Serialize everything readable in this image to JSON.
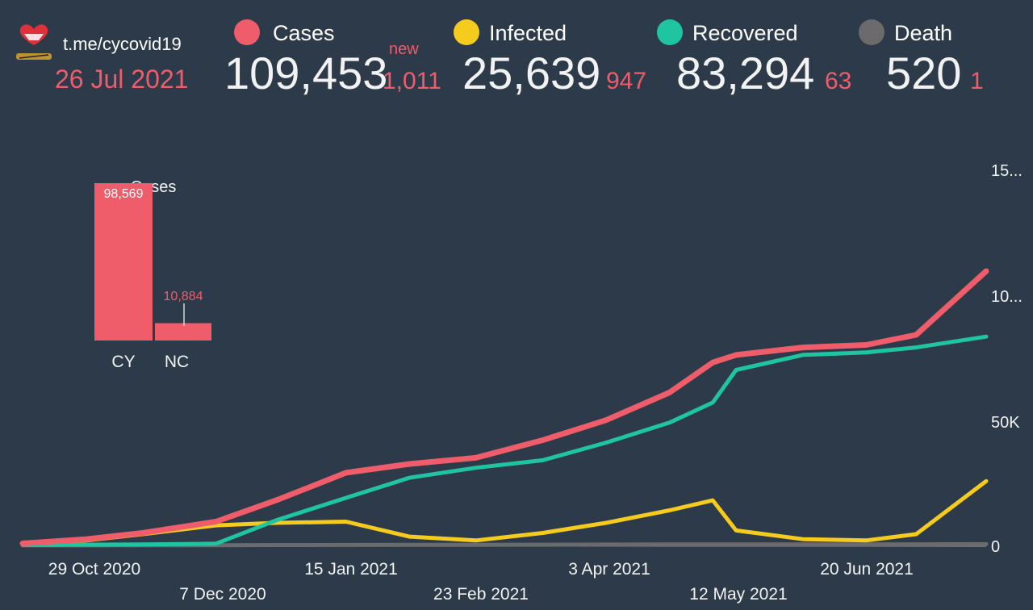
{
  "header": {
    "site": "t.me/cycovid19",
    "date": "26 Jul 2021",
    "new_tag": "new"
  },
  "stats": [
    {
      "key": "cases",
      "label": "Cases",
      "value": "109,453",
      "new": "1,011",
      "color": "#ef5d6b"
    },
    {
      "key": "infected",
      "label": "Infected",
      "value": "25,639",
      "new": "947",
      "color": "#f5cb1d"
    },
    {
      "key": "recovered",
      "label": "Recovered",
      "value": "83,294",
      "new": "63",
      "color": "#1fc4a1"
    },
    {
      "key": "death",
      "label": "Death",
      "value": "520",
      "new": "1",
      "color": "#6b6b6b"
    }
  ],
  "chart_data": [
    {
      "type": "line",
      "title": "",
      "x": [
        "2020-10-10",
        "2020-10-29",
        "2020-11-15",
        "2020-12-07",
        "2020-12-25",
        "2021-01-15",
        "2021-02-03",
        "2021-02-23",
        "2021-03-15",
        "2021-04-03",
        "2021-04-22",
        "2021-05-05",
        "2021-05-12",
        "2021-06-01",
        "2021-06-20",
        "2021-07-05",
        "2021-07-26"
      ],
      "series": [
        {
          "name": "Cases",
          "color": "#ef5d6b",
          "values": [
            800,
            2500,
            5000,
            9500,
            18000,
            29000,
            32500,
            35000,
            42000,
            50000,
            61000,
            73000,
            76000,
            79000,
            80000,
            84000,
            109453
          ]
        },
        {
          "name": "Recovered",
          "color": "#1fc4a1",
          "values": [
            200,
            300,
            400,
            700,
            10000,
            19000,
            27000,
            31000,
            34000,
            41000,
            49000,
            57000,
            70000,
            76000,
            77000,
            79000,
            83294
          ]
        },
        {
          "name": "Infected",
          "color": "#f5cb1d",
          "values": [
            600,
            2000,
            4500,
            8000,
            9000,
            9500,
            3500,
            2000,
            5000,
            9000,
            14000,
            18000,
            6000,
            2500,
            2000,
            4500,
            25639
          ]
        },
        {
          "name": "Death",
          "color": "#6b6b6b",
          "values": [
            20,
            40,
            60,
            100,
            150,
            200,
            240,
            260,
            300,
            350,
            380,
            400,
            410,
            420,
            430,
            460,
            520
          ]
        }
      ],
      "x_tick_labels": [
        "29 Oct 2020",
        "7 Dec 2020",
        "15 Jan 2021",
        "23 Feb 2021",
        "3 Apr 2021",
        "12 May 2021",
        "20 Jun 2021"
      ],
      "y_tick_labels": [
        "0",
        "50K",
        "10...",
        "15..."
      ],
      "ylim": [
        0,
        150000
      ]
    },
    {
      "type": "bar",
      "title": "Cases",
      "categories": [
        "CY",
        "NC"
      ],
      "values": [
        98569,
        10884
      ],
      "value_labels": [
        "98,569",
        "10,884"
      ],
      "color": "#ef5d6b"
    }
  ]
}
